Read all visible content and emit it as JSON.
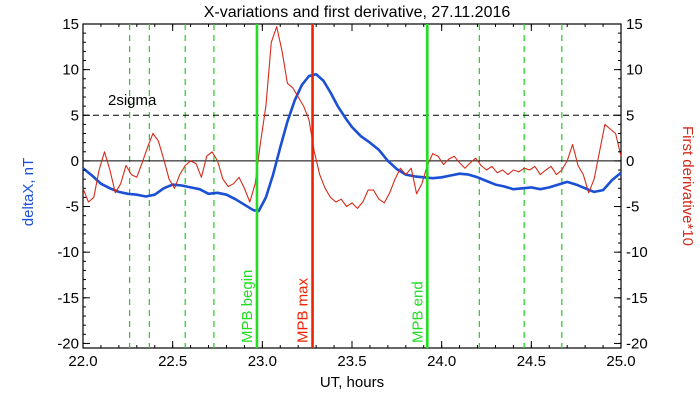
{
  "chart_data": {
    "type": "line",
    "title": "X-variations and first derivative, 27.11.2016",
    "xlabel": "UT, hours",
    "ylabel_left": "deltaX, nT",
    "ylabel_right": "First derivative*10",
    "xlim": [
      22.0,
      25.0
    ],
    "ylim": [
      -20.5,
      15
    ],
    "x_ticks": [
      {
        "v": 22.0,
        "label": "22.0"
      },
      {
        "v": 22.5,
        "label": "22.5"
      },
      {
        "v": 23.0,
        "label": "23.0"
      },
      {
        "v": 23.5,
        "label": "23.5"
      },
      {
        "v": 24.0,
        "label": "24.0"
      },
      {
        "v": 24.5,
        "label": "24.5"
      },
      {
        "v": 25.0,
        "label": "25.0"
      }
    ],
    "y_ticks": [
      {
        "v": 15,
        "label": "15"
      },
      {
        "v": 10,
        "label": "10"
      },
      {
        "v": 5,
        "label": "5"
      },
      {
        "v": 0,
        "label": "0"
      },
      {
        "v": -5,
        "label": "-5"
      },
      {
        "v": -10,
        "label": "-10"
      },
      {
        "v": -15,
        "label": "-15"
      },
      {
        "v": -20,
        "label": "-20"
      }
    ],
    "sigma_level": 5,
    "sigma_label": "2sigma",
    "colors": {
      "deltaX": "#1a4fd6",
      "derivative": "#d42a1a",
      "mpb_begin_end": "#22dd22",
      "mpb_max": "#ee2200",
      "dashed_green": "#22cc22",
      "axis": "#000000"
    },
    "dashed_green_lines": [
      22.26,
      22.37,
      22.57,
      22.73,
      24.21,
      24.46,
      24.67
    ],
    "markers": [
      {
        "x": 22.97,
        "label": "MPB begin",
        "color": "#22dd22"
      },
      {
        "x": 23.28,
        "label": "MPB max",
        "color": "#ee2200"
      },
      {
        "x": 23.92,
        "label": "MPB end",
        "color": "#22dd22"
      }
    ],
    "series": [
      {
        "key": "deltaX",
        "axis": "left",
        "x": [
          22.0,
          22.05,
          22.1,
          22.15,
          22.2,
          22.25,
          22.3,
          22.35,
          22.4,
          22.45,
          22.5,
          22.55,
          22.6,
          22.65,
          22.7,
          22.75,
          22.8,
          22.85,
          22.9,
          22.95,
          22.98,
          23.02,
          23.06,
          23.1,
          23.14,
          23.18,
          23.22,
          23.26,
          23.3,
          23.34,
          23.38,
          23.42,
          23.46,
          23.5,
          23.55,
          23.6,
          23.65,
          23.7,
          23.75,
          23.8,
          23.85,
          23.9,
          23.95,
          24.0,
          24.05,
          24.1,
          24.15,
          24.2,
          24.25,
          24.3,
          24.35,
          24.4,
          24.45,
          24.5,
          24.55,
          24.6,
          24.65,
          24.7,
          24.75,
          24.8,
          24.85,
          24.9,
          24.95,
          25.0
        ],
        "y": [
          -0.8,
          -1.6,
          -2.5,
          -3.0,
          -3.4,
          -3.6,
          -3.7,
          -3.9,
          -3.7,
          -3.0,
          -2.6,
          -2.7,
          -2.9,
          -3.1,
          -3.6,
          -3.5,
          -3.7,
          -4.2,
          -4.8,
          -5.4,
          -5.5,
          -4.0,
          -1.5,
          1.5,
          4.3,
          6.6,
          8.3,
          9.3,
          9.5,
          8.8,
          7.5,
          6.0,
          4.8,
          3.7,
          2.7,
          2.0,
          1.2,
          0.0,
          -0.9,
          -1.5,
          -1.7,
          -1.8,
          -1.9,
          -1.8,
          -1.6,
          -1.4,
          -1.5,
          -1.8,
          -2.2,
          -2.6,
          -2.8,
          -3.1,
          -3.0,
          -2.9,
          -3.1,
          -2.9,
          -2.6,
          -2.3,
          -2.6,
          -3.0,
          -3.4,
          -3.2,
          -2.1,
          -1.3
        ]
      },
      {
        "key": "derivative",
        "axis": "right",
        "x": [
          22.0,
          22.03,
          22.06,
          22.09,
          22.12,
          22.15,
          22.18,
          22.21,
          22.24,
          22.27,
          22.3,
          22.33,
          22.36,
          22.39,
          22.42,
          22.45,
          22.48,
          22.51,
          22.54,
          22.57,
          22.6,
          22.63,
          22.66,
          22.69,
          22.72,
          22.75,
          22.78,
          22.81,
          22.84,
          22.87,
          22.9,
          22.93,
          22.96,
          22.99,
          23.02,
          23.05,
          23.08,
          23.11,
          23.14,
          23.17,
          23.2,
          23.23,
          23.26,
          23.29,
          23.32,
          23.35,
          23.38,
          23.41,
          23.44,
          23.47,
          23.5,
          23.53,
          23.56,
          23.59,
          23.62,
          23.65,
          23.68,
          23.71,
          23.74,
          23.77,
          23.8,
          23.83,
          23.86,
          23.89,
          23.92,
          23.95,
          23.98,
          24.01,
          24.04,
          24.07,
          24.1,
          24.13,
          24.16,
          24.19,
          24.22,
          24.25,
          24.28,
          24.31,
          24.34,
          24.37,
          24.4,
          24.43,
          24.46,
          24.49,
          24.52,
          24.55,
          24.58,
          24.61,
          24.64,
          24.67,
          24.7,
          24.73,
          24.76,
          24.79,
          24.82,
          24.85,
          24.88,
          24.91,
          24.94,
          24.97,
          25.0
        ],
        "y": [
          -3.0,
          -4.5,
          -4.0,
          -1.0,
          1.0,
          -1.0,
          -3.5,
          -2.5,
          -0.5,
          -1.5,
          -1.8,
          -0.2,
          1.5,
          3.0,
          2.2,
          0.2,
          -2.0,
          -3.0,
          -1.5,
          -0.5,
          0.0,
          -0.3,
          -1.8,
          0.5,
          1.0,
          0.0,
          -2.0,
          -2.8,
          -2.5,
          -1.8,
          -3.0,
          -4.5,
          -2.5,
          2.0,
          6.0,
          13.0,
          14.7,
          12.0,
          8.5,
          8.0,
          7.0,
          6.0,
          4.5,
          1.0,
          -1.5,
          -3.0,
          -4.0,
          -4.5,
          -4.2,
          -5.0,
          -4.6,
          -5.2,
          -4.5,
          -3.2,
          -3.2,
          -4.2,
          -4.6,
          -3.5,
          -2.0,
          -0.8,
          -1.5,
          -0.8,
          -3.6,
          -2.5,
          -0.5,
          0.8,
          0.5,
          -0.4,
          0.2,
          0.5,
          -0.2,
          -0.8,
          -0.2,
          0.3,
          -0.5,
          -1.0,
          -0.6,
          -1.3,
          -1.0,
          -1.5,
          -1.0,
          -1.2,
          -0.8,
          -1.0,
          -0.6,
          -1.5,
          -1.0,
          -0.6,
          -1.5,
          -1.0,
          0.0,
          1.8,
          -0.5,
          -1.5,
          -3.5,
          -2.0,
          1.0,
          4.0,
          3.5,
          3.0,
          0.5
        ]
      }
    ]
  }
}
